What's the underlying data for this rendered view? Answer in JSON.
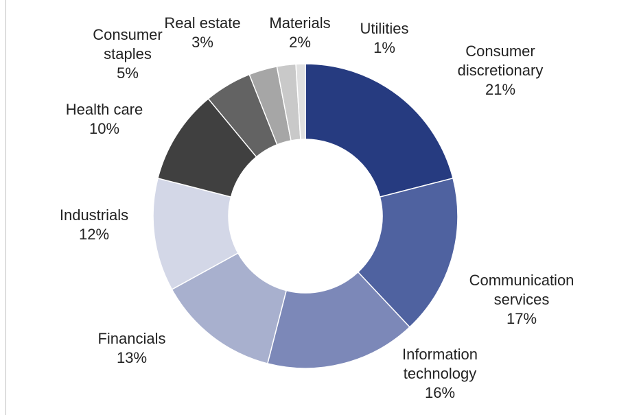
{
  "chart_data": {
    "type": "donut",
    "categories": [
      "Consumer discretionary",
      "Communication services",
      "Information technology",
      "Financials",
      "Industrials",
      "Health care",
      "Consumer staples",
      "Real estate",
      "Materials",
      "Utilities"
    ],
    "values": [
      21,
      17,
      16,
      13,
      12,
      10,
      5,
      3,
      2,
      1
    ],
    "value_labels": [
      "21%",
      "17%",
      "16%",
      "13%",
      "12%",
      "10%",
      "5%",
      "3%",
      "2%",
      "1%"
    ],
    "colors": [
      "#263b80",
      "#4f62a0",
      "#7c88b8",
      "#a8b0ce",
      "#d3d7e7",
      "#404040",
      "#636363",
      "#a6a6a6",
      "#c9c9c9",
      "#e0e0e0"
    ]
  }
}
